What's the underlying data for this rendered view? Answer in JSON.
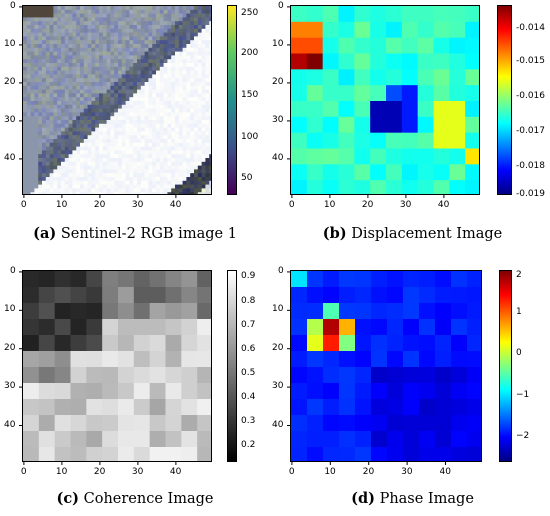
{
  "panels": [
    {
      "letter": "(a)",
      "caption": "Sentinel-2 RGB image 1",
      "kind": "rgb",
      "x_ticks": [
        "0",
        "10",
        "20",
        "30",
        "40"
      ],
      "y_ticks": [
        "0",
        "10",
        "20",
        "30",
        "40"
      ],
      "cbar_ticks": [
        "250",
        "200",
        "150",
        "100",
        "50"
      ]
    },
    {
      "letter": "(b)",
      "caption": "Displacement Image",
      "kind": "displacement",
      "x_ticks": [
        "0",
        "10",
        "20",
        "30",
        "40"
      ],
      "y_ticks": [
        "0",
        "10",
        "20",
        "30",
        "40"
      ],
      "cbar_ticks": [
        "-0.014",
        "-0.015",
        "-0.016",
        "-0.017",
        "-0.018",
        "-0.019"
      ]
    },
    {
      "letter": "(c)",
      "caption": "Coherence Image",
      "kind": "coherence",
      "x_ticks": [
        "0",
        "10",
        "20",
        "30",
        "40"
      ],
      "y_ticks": [
        "0",
        "10",
        "20",
        "30",
        "40"
      ],
      "cbar_ticks": [
        "0.9",
        "0.8",
        "0.7",
        "0.6",
        "0.5",
        "0.4",
        "0.3",
        "0.2"
      ]
    },
    {
      "letter": "(d)",
      "caption": "Phase Image",
      "kind": "phase",
      "x_ticks": [
        "0",
        "10",
        "20",
        "30",
        "40"
      ],
      "y_ticks": [
        "0",
        "10",
        "20",
        "30",
        "40"
      ],
      "cbar_ticks": [
        "2",
        "1",
        "0",
        "−1",
        "−2"
      ]
    }
  ],
  "chart_data": [
    {
      "type": "heatmap",
      "title": "Sentinel-2 RGB image 1",
      "colormap": "viridis",
      "grid_size": [
        50,
        50
      ],
      "xlim": [
        0,
        49
      ],
      "ylim": [
        49,
        0
      ],
      "colorbar_range": [
        30,
        255
      ],
      "colorbar_ticks": [
        50,
        100,
        150,
        200,
        250
      ],
      "description_features": [
        "diagonal bright band from lower-left to upper-right",
        "dark road stripe along upper-left",
        "dark stripe in lower-right"
      ]
    },
    {
      "type": "heatmap",
      "title": "Displacement Image",
      "colormap": "jet",
      "grid_size": [
        50,
        50
      ],
      "xlim": [
        0,
        49
      ],
      "ylim": [
        49,
        0
      ],
      "colorbar_range": [
        -0.019,
        -0.0135
      ],
      "colorbar_ticks": [
        -0.019,
        -0.018,
        -0.017,
        -0.016,
        -0.015,
        -0.014
      ],
      "hotspots": [
        {
          "x": 5,
          "y": 5,
          "value": -0.0135
        },
        {
          "x": 2,
          "y": 13,
          "value": -0.0137
        },
        {
          "x": 6,
          "y": 13,
          "value": -0.0132
        }
      ],
      "lows": [
        {
          "x": 22,
          "y": 28,
          "value": -0.019
        },
        {
          "x": 27,
          "y": 22,
          "value": -0.0185
        }
      ]
    },
    {
      "type": "heatmap",
      "title": "Coherence Image",
      "colormap": "gray",
      "grid_size": [
        50,
        50
      ],
      "xlim": [
        0,
        49
      ],
      "ylim": [
        49,
        0
      ],
      "colorbar_range": [
        0.15,
        0.95
      ],
      "colorbar_ticks": [
        0.2,
        0.3,
        0.4,
        0.5,
        0.6,
        0.7,
        0.8,
        0.9
      ]
    },
    {
      "type": "heatmap",
      "title": "Phase Image",
      "colormap": "jet",
      "grid_size": [
        50,
        50
      ],
      "xlim": [
        0,
        49
      ],
      "ylim": [
        49,
        0
      ],
      "colorbar_range": [
        -2.6,
        2.2
      ],
      "colorbar_ticks": [
        -2,
        -1,
        0,
        1,
        2
      ],
      "hotspots": [
        {
          "x": 8,
          "y": 12,
          "value": 2.1
        },
        {
          "x": 6,
          "y": 16,
          "value": 1.8
        }
      ]
    }
  ]
}
